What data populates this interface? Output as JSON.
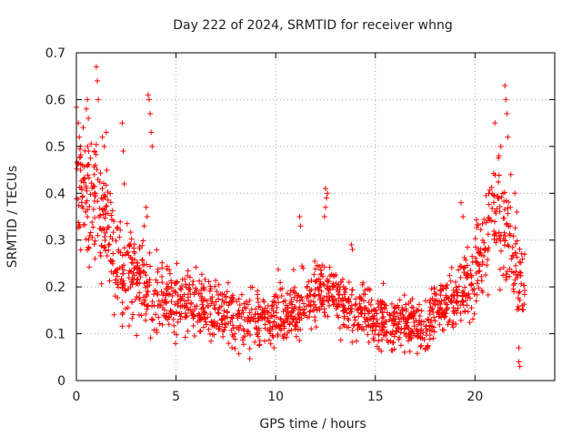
{
  "chart_data": {
    "type": "scatter",
    "title": "Day 222 of 2024, SRMTID for receiver whng",
    "xlabel": "GPS time / hours",
    "ylabel": "SRMTID / TECUs",
    "xlim": [
      0,
      24
    ],
    "ylim": [
      0,
      0.7
    ],
    "xticks": [
      0,
      5,
      10,
      15,
      20
    ],
    "yticks": [
      0,
      0.1,
      0.2,
      0.3,
      0.4,
      0.5,
      0.6,
      0.7
    ],
    "xtick_labels": [
      "0",
      "5",
      "10",
      "15",
      "20"
    ],
    "ytick_labels": [
      "0",
      "0.1",
      "0.2",
      "0.3",
      "0.4",
      "0.5",
      "0.6",
      "0.7"
    ],
    "grid": true,
    "marker": "+",
    "color": "#ff0000",
    "profile": {
      "note": "Approximate trend of the scattered points (x in hours, y in TECU); individual point values are estimated from this trend.",
      "x": [
        0,
        0.25,
        0.5,
        1,
        1.5,
        2,
        3,
        4,
        5,
        6,
        7,
        8,
        9,
        10,
        11,
        12,
        12.5,
        13,
        14,
        15,
        16,
        17,
        17.5,
        18,
        19,
        19.5,
        20,
        20.5,
        21,
        21.5,
        22,
        22.5
      ],
      "y": [
        0.47,
        0.42,
        0.38,
        0.38,
        0.33,
        0.25,
        0.21,
        0.19,
        0.17,
        0.16,
        0.15,
        0.13,
        0.13,
        0.14,
        0.15,
        0.18,
        0.2,
        0.17,
        0.15,
        0.13,
        0.12,
        0.12,
        0.11,
        0.15,
        0.18,
        0.2,
        0.24,
        0.29,
        0.37,
        0.32,
        0.26,
        0.19
      ]
    },
    "spread": {
      "x": [
        0,
        1,
        2,
        3,
        5,
        10,
        15,
        17.5,
        19,
        20.5,
        21,
        22,
        22.5
      ],
      "y": [
        0.09,
        0.09,
        0.07,
        0.06,
        0.05,
        0.045,
        0.04,
        0.035,
        0.05,
        0.07,
        0.09,
        0.07,
        0.05
      ]
    },
    "outliers": [
      {
        "x": 0.1,
        "y": 0.55
      },
      {
        "x": 0.15,
        "y": 0.52
      },
      {
        "x": 0.2,
        "y": 0.5
      },
      {
        "x": 0.5,
        "y": 0.58
      },
      {
        "x": 0.55,
        "y": 0.6
      },
      {
        "x": 0.6,
        "y": 0.56
      },
      {
        "x": 0.9,
        "y": 0.44
      },
      {
        "x": 0.95,
        "y": 0.46
      },
      {
        "x": 1.0,
        "y": 0.67
      },
      {
        "x": 1.05,
        "y": 0.64
      },
      {
        "x": 1.1,
        "y": 0.6
      },
      {
        "x": 1.3,
        "y": 0.52
      },
      {
        "x": 1.4,
        "y": 0.5
      },
      {
        "x": 1.5,
        "y": 0.53
      },
      {
        "x": 2.3,
        "y": 0.55
      },
      {
        "x": 2.35,
        "y": 0.49
      },
      {
        "x": 2.4,
        "y": 0.42
      },
      {
        "x": 3.6,
        "y": 0.61
      },
      {
        "x": 3.65,
        "y": 0.6
      },
      {
        "x": 3.7,
        "y": 0.57
      },
      {
        "x": 3.75,
        "y": 0.53
      },
      {
        "x": 3.8,
        "y": 0.5
      },
      {
        "x": 3.5,
        "y": 0.37
      },
      {
        "x": 3.55,
        "y": 0.35
      },
      {
        "x": 3.4,
        "y": 0.33
      },
      {
        "x": 12.5,
        "y": 0.41
      },
      {
        "x": 12.55,
        "y": 0.39
      },
      {
        "x": 12.6,
        "y": 0.4
      },
      {
        "x": 12.5,
        "y": 0.37
      },
      {
        "x": 12.45,
        "y": 0.35
      },
      {
        "x": 11.2,
        "y": 0.35
      },
      {
        "x": 11.25,
        "y": 0.33
      },
      {
        "x": 13.8,
        "y": 0.29
      },
      {
        "x": 13.85,
        "y": 0.28
      },
      {
        "x": 21.0,
        "y": 0.55
      },
      {
        "x": 21.3,
        "y": 0.5
      },
      {
        "x": 21.5,
        "y": 0.63
      },
      {
        "x": 21.55,
        "y": 0.6
      },
      {
        "x": 21.6,
        "y": 0.57
      },
      {
        "x": 21.65,
        "y": 0.52
      },
      {
        "x": 21.2,
        "y": 0.48
      },
      {
        "x": 21.8,
        "y": 0.44
      },
      {
        "x": 22.0,
        "y": 0.4
      },
      {
        "x": 22.1,
        "y": 0.36
      },
      {
        "x": 19.3,
        "y": 0.38
      },
      {
        "x": 19.4,
        "y": 0.35
      },
      {
        "x": 22.2,
        "y": 0.04
      },
      {
        "x": 22.25,
        "y": 0.03
      },
      {
        "x": 22.2,
        "y": 0.07
      }
    ]
  }
}
